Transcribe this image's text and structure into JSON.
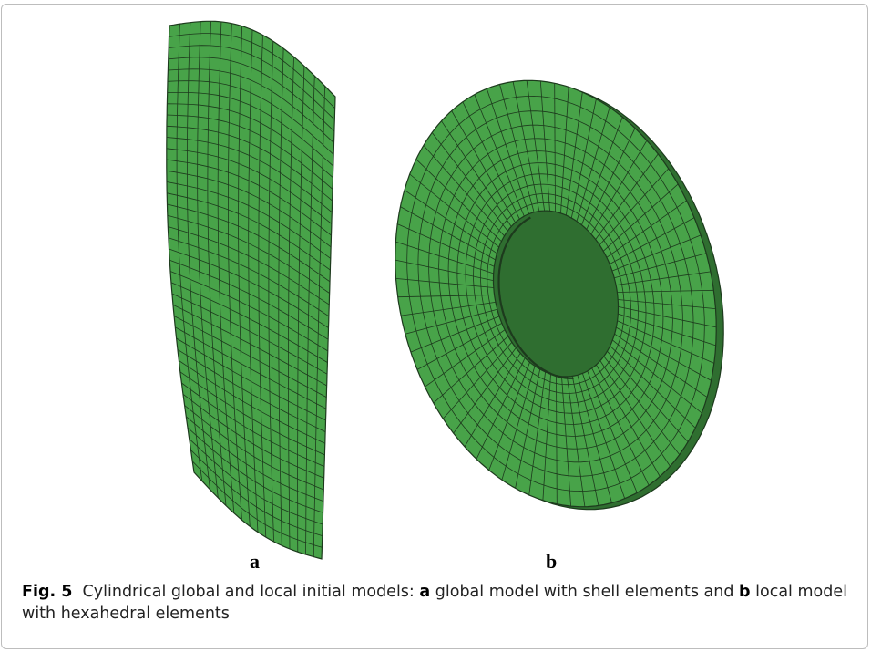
{
  "figure": {
    "panel_a_label": "a",
    "panel_b_label": "b",
    "mesh_fill": "#48a349",
    "mesh_line": "#1d3a1d"
  },
  "caption": {
    "fig_number": "Fig. 5",
    "text_1": "Cylindrical global and local initial models: ",
    "label_a": "a",
    "text_2": " global model with shell elements and ",
    "label_b": "b",
    "text_3": " local model with hexahedral elements"
  }
}
